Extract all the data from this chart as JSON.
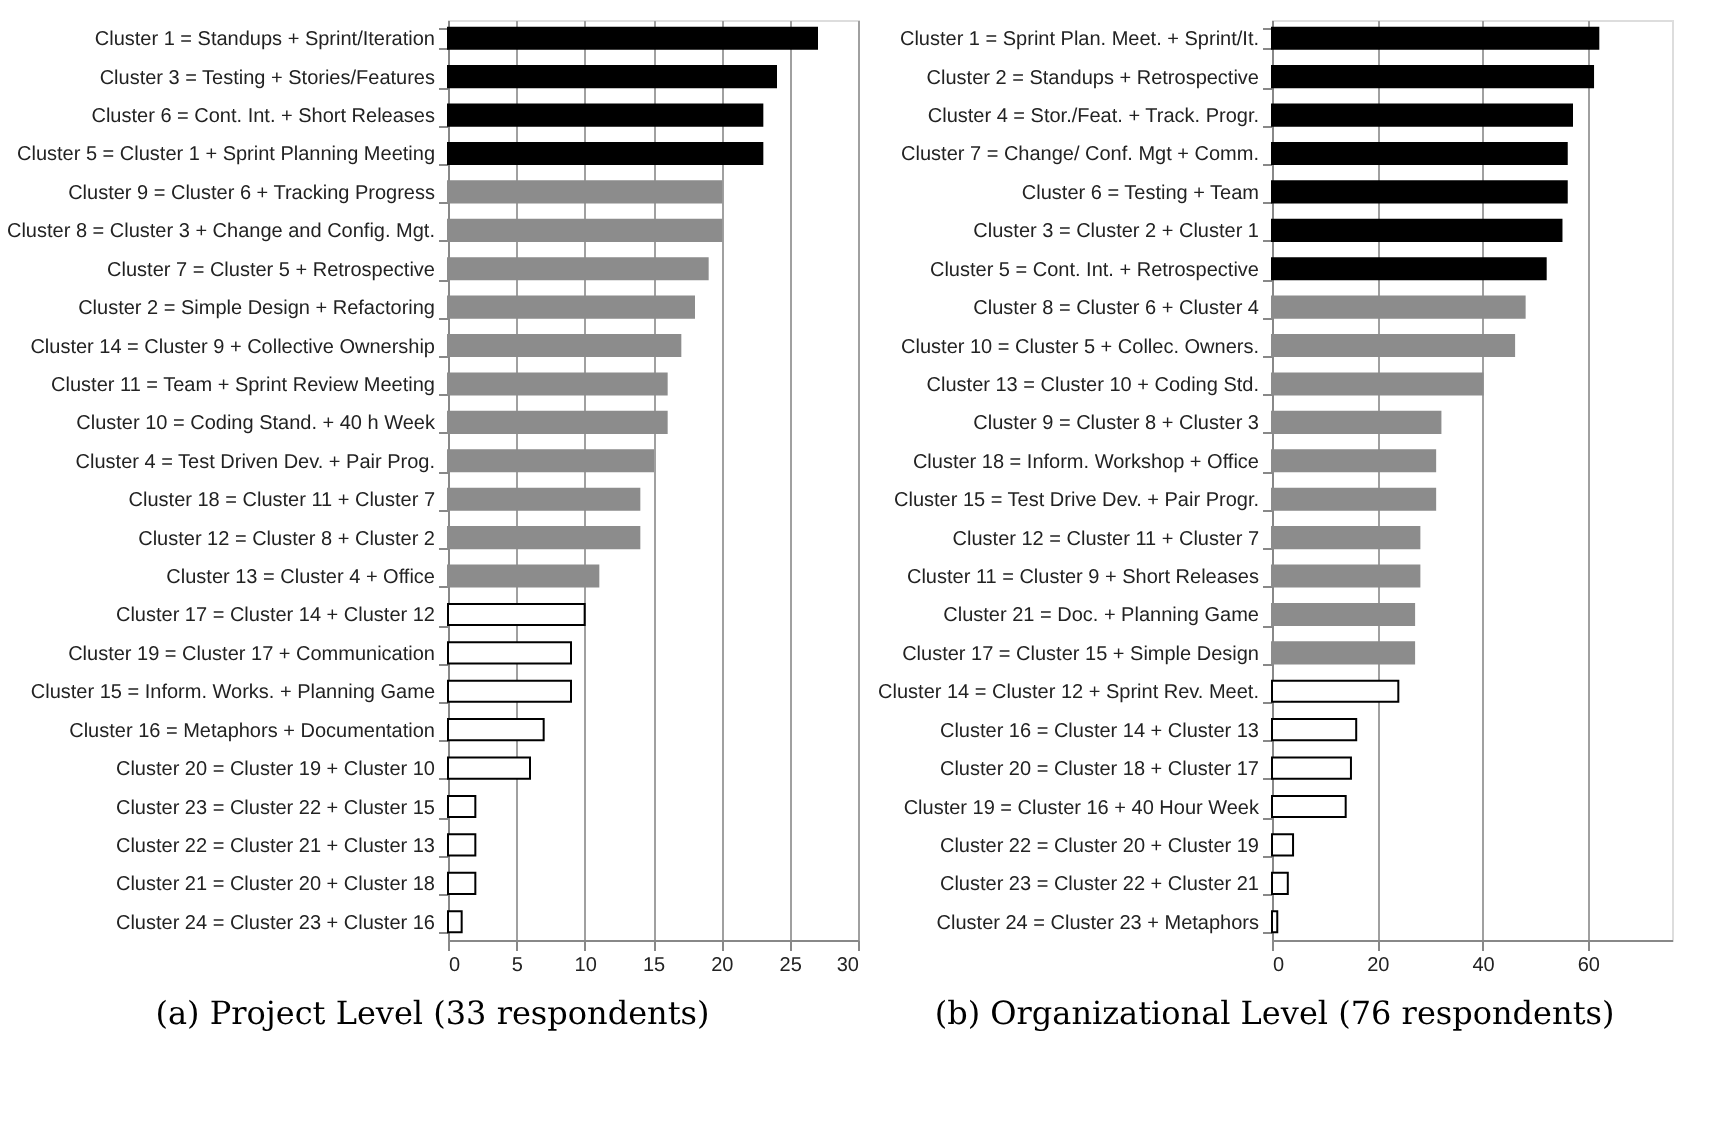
{
  "chart_data": [
    {
      "type": "bar",
      "orientation": "horizontal",
      "title": "(a) Project Level (33 respondents)",
      "grid": "x",
      "categories": [
        "Cluster 1 = Standups + Sprint/Iteration",
        "Cluster 3 = Testing + Stories/Features",
        "Cluster 6 = Cont. Int. + Short Releases",
        "Cluster 5 = Cluster 1 + Sprint Planning Meeting",
        "Cluster 9 = Cluster 6 + Tracking Progress",
        "Cluster 8 = Cluster 3 + Change and Config. Mgt.",
        "Cluster 7 = Cluster 5 + Retrospective",
        "Cluster 2 = Simple Design + Refactoring",
        "Cluster 14 = Cluster 9 + Collective Ownership",
        "Cluster 11 = Team + Sprint Review Meeting",
        "Cluster 10 = Coding Stand. + 40 h Week",
        "Cluster 4 = Test Driven Dev. + Pair Prog.",
        "Cluster 18 = Cluster 11 + Cluster 7",
        "Cluster 12 = Cluster 8 + Cluster 2",
        "Cluster 13 = Cluster 4 + Office",
        "Cluster 17 = Cluster 14 + Cluster 12",
        "Cluster 19 = Cluster 17 + Communication",
        "Cluster 15 = Inform. Works. + Planning Game",
        "Cluster 16 = Metaphors + Documentation",
        "Cluster 20 = Cluster 19 + Cluster 10",
        "Cluster 23 = Cluster 22 + Cluster 15",
        "Cluster 22 = Cluster 21 + Cluster 13",
        "Cluster 21 = Cluster 20 + Cluster 18",
        "Cluster 24 = Cluster 23 + Cluster 16"
      ],
      "values": [
        27,
        24,
        23,
        23,
        20,
        20,
        19,
        18,
        17,
        16,
        16,
        15,
        14,
        14,
        11,
        10,
        9,
        9,
        7,
        6,
        2,
        2,
        2,
        1
      ],
      "colors": [
        "#000000",
        "#000000",
        "#000000",
        "#000000",
        "#8c8c8c",
        "#8c8c8c",
        "#8c8c8c",
        "#8c8c8c",
        "#8c8c8c",
        "#8c8c8c",
        "#8c8c8c",
        "#8c8c8c",
        "#8c8c8c",
        "#8c8c8c",
        "#8c8c8c",
        "#ffffff",
        "#ffffff",
        "#ffffff",
        "#ffffff",
        "#ffffff",
        "#ffffff",
        "#ffffff",
        "#ffffff",
        "#ffffff"
      ],
      "xlim": [
        0,
        30
      ],
      "xticks": [
        0,
        5,
        10,
        15,
        20,
        25,
        30
      ]
    },
    {
      "type": "bar",
      "orientation": "horizontal",
      "title": "(b) Organizational Level (76 respondents)",
      "grid": "x",
      "categories": [
        "Cluster 1 = Sprint Plan. Meet. + Sprint/It.",
        "Cluster 2 = Standups + Retrospective",
        "Cluster 4 = Stor./Feat. + Track. Progr.",
        "Cluster 7 = Change/ Conf. Mgt + Comm.",
        "Cluster 6 = Testing + Team",
        "Cluster 3 = Cluster 2 + Cluster 1",
        "Cluster 5 = Cont. Int. + Retrospective",
        "Cluster 8 = Cluster 6 + Cluster 4",
        "Cluster 10 = Cluster 5 + Collec. Owners.",
        "Cluster 13 = Cluster 10 + Coding Std.",
        "Cluster 9 = Cluster 8 + Cluster 3",
        "Cluster 18 = Inform. Workshop + Office",
        "Cluster 15 = Test Drive Dev. + Pair Progr.",
        "Cluster 12 = Cluster 11 + Cluster 7",
        "Cluster 11 = Cluster 9 + Short Releases",
        "Cluster 21 = Doc. + Planning Game",
        "Cluster 17 = Cluster 15 + Simple Design",
        "Cluster 14 = Cluster 12 + Sprint Rev. Meet.",
        "Cluster 16 = Cluster 14 + Cluster 13",
        "Cluster 20 = Cluster 18 + Cluster 17",
        "Cluster 19 = Cluster 16 + 40 Hour Week",
        "Cluster 22 = Cluster 20 + Cluster 19",
        "Cluster 23 = Cluster 22 + Cluster 21",
        "Cluster 24 = Cluster 23 + Metaphors"
      ],
      "values": [
        62,
        61,
        57,
        56,
        56,
        55,
        52,
        48,
        46,
        40,
        32,
        31,
        31,
        28,
        28,
        27,
        27,
        24,
        16,
        15,
        14,
        4,
        3,
        1
      ],
      "colors": [
        "#000000",
        "#000000",
        "#000000",
        "#000000",
        "#000000",
        "#000000",
        "#000000",
        "#8c8c8c",
        "#8c8c8c",
        "#8c8c8c",
        "#8c8c8c",
        "#8c8c8c",
        "#8c8c8c",
        "#8c8c8c",
        "#8c8c8c",
        "#8c8c8c",
        "#8c8c8c",
        "#ffffff",
        "#ffffff",
        "#ffffff",
        "#ffffff",
        "#ffffff",
        "#ffffff",
        "#ffffff"
      ],
      "xlim": [
        0,
        76
      ],
      "xticks": [
        0,
        20,
        40,
        60
      ]
    }
  ]
}
